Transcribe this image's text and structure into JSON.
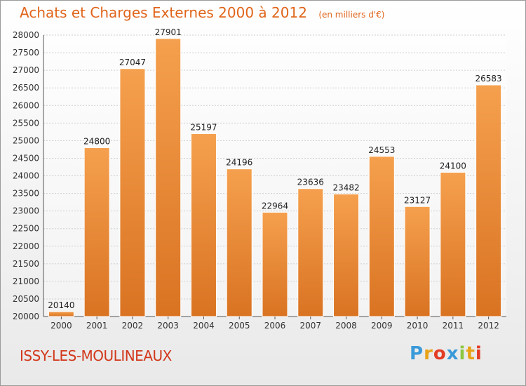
{
  "title": "Achats et Charges Externes 2000 à 2012",
  "unit": "(en milliers d'€)",
  "city": "ISSY-LES-MOULINEAUX",
  "logo": {
    "letters": [
      "P",
      "r",
      "o",
      "x",
      "i",
      "t",
      "i"
    ],
    "colors": [
      "#3a9ad9",
      "#e8a317",
      "#e33c25",
      "#3a9ad9",
      "#8dc63f",
      "#e8a317",
      "#e33c25"
    ]
  },
  "colors": {
    "bar_top": "#f5a04e",
    "bar_bottom": "#d97322",
    "title": "#e0651b",
    "city": "#d2381b"
  },
  "chart_data": {
    "type": "bar",
    "categories": [
      "2000",
      "2001",
      "2002",
      "2003",
      "2004",
      "2005",
      "2006",
      "2007",
      "2008",
      "2009",
      "2010",
      "2011",
      "2012"
    ],
    "values": [
      20140,
      24800,
      27047,
      27901,
      25197,
      24196,
      22964,
      23636,
      23482,
      24553,
      23127,
      24100,
      26583
    ],
    "ylim": [
      20000,
      28000
    ],
    "yticks": [
      20000,
      20500,
      21000,
      21500,
      22000,
      22500,
      23000,
      23500,
      24000,
      24500,
      25000,
      25500,
      26000,
      26500,
      27000,
      27500,
      28000
    ],
    "grid": true,
    "title": "Achats et Charges Externes 2000 à 2012",
    "xlabel": "",
    "ylabel": ""
  }
}
